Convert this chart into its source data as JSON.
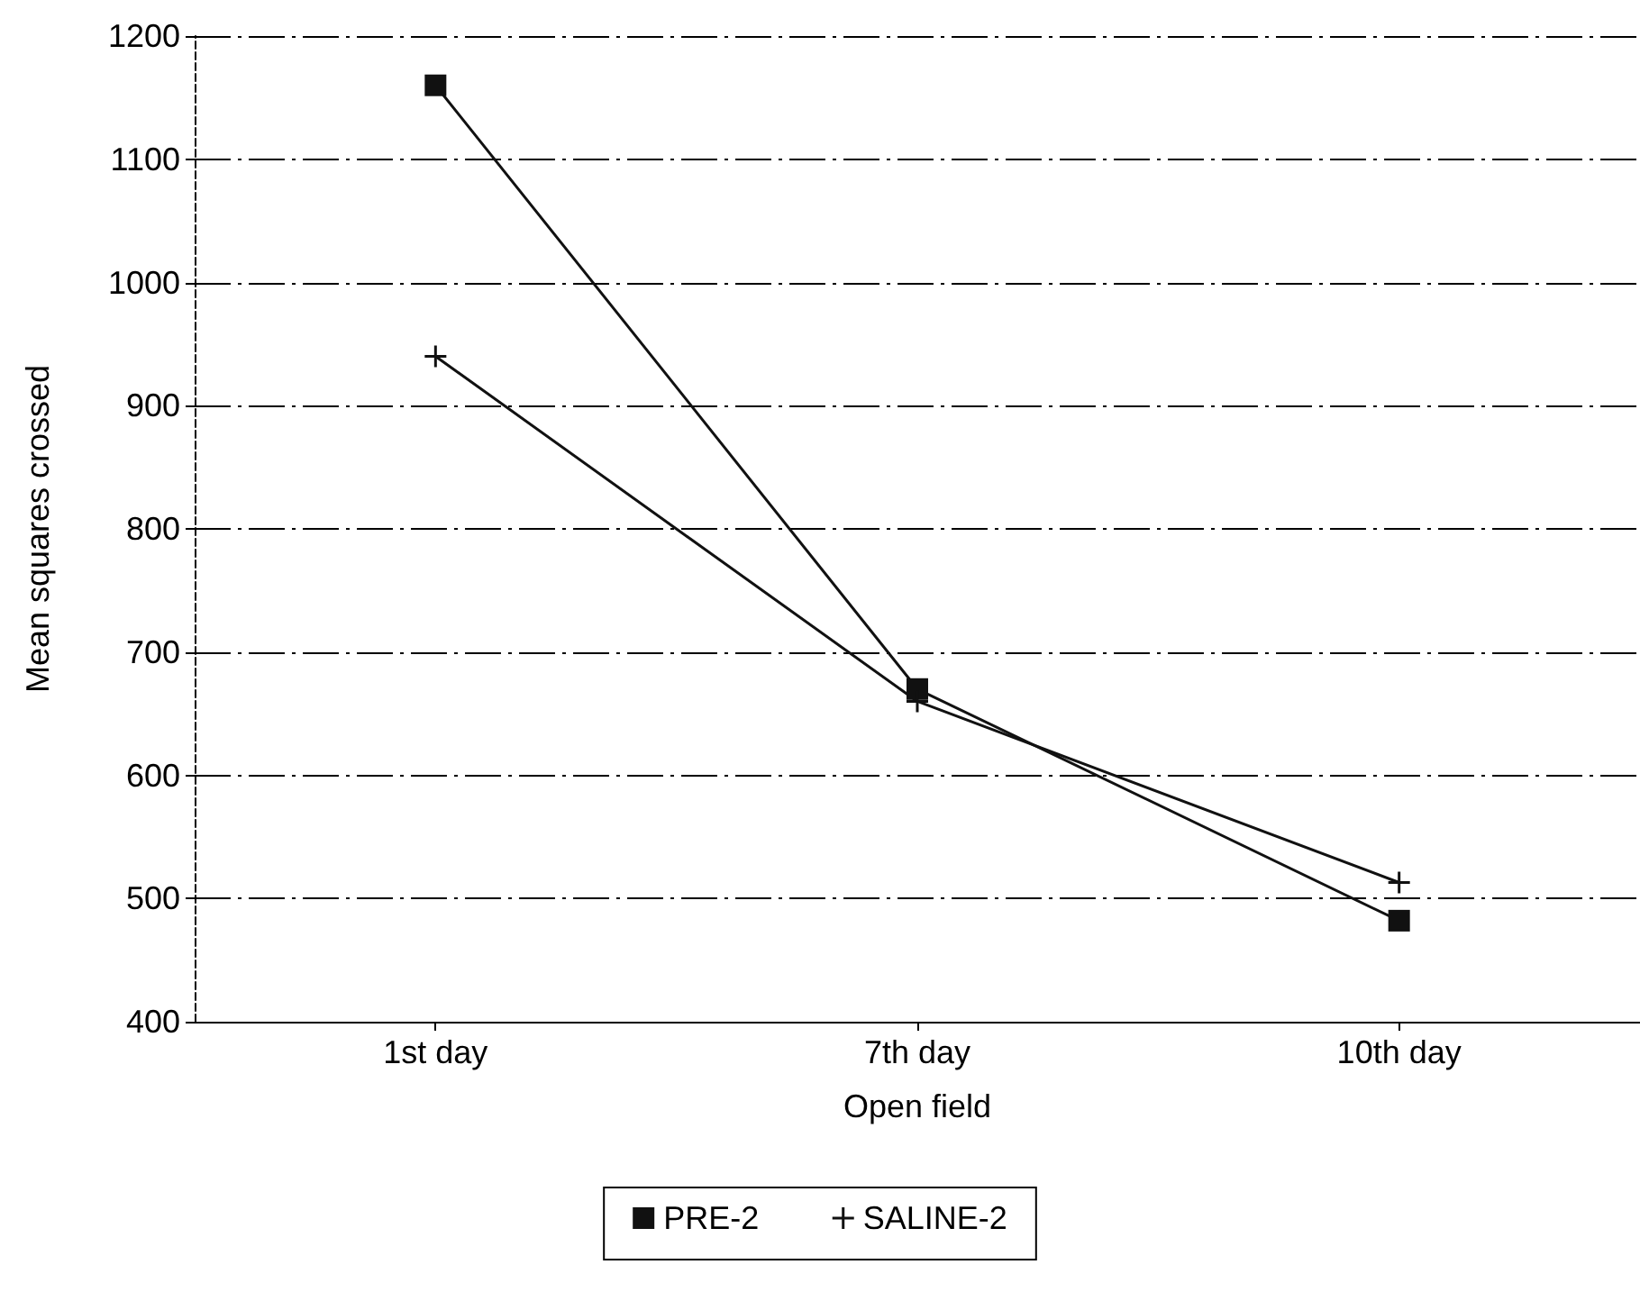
{
  "chart_data": {
    "type": "line",
    "xlabel": "Open field",
    "ylabel": "Mean squares crossed",
    "categories": [
      "1st day",
      "7th day",
      "10th day"
    ],
    "series": [
      {
        "name": "PRE-2",
        "color": "#111111",
        "marker": "square",
        "values": [
          1160,
          670,
          482
        ]
      },
      {
        "name": "SALINE-2",
        "color": "#111111",
        "marker": "cross",
        "values": [
          940,
          660,
          513
        ]
      }
    ],
    "ylim": [
      400,
      1200
    ],
    "yticks": [
      400,
      500,
      600,
      700,
      800,
      900,
      1000,
      1100,
      1200
    ],
    "grid": "y",
    "legend": "bottom"
  }
}
